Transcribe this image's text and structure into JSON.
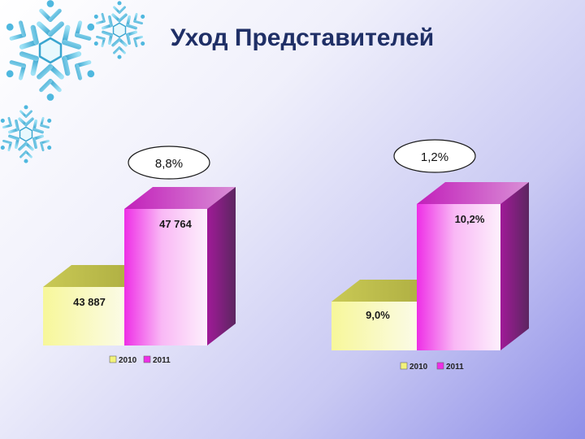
{
  "page": {
    "title": "Уход Представителей"
  },
  "colors": {
    "year_2010": "#f2f27a",
    "year_2011": "#ee2ee6",
    "snowflake": "#5bc4e6"
  },
  "chart_data": [
    {
      "type": "bar",
      "style": "3d",
      "categories": [
        "2010",
        "2011"
      ],
      "values": [
        43887,
        47764
      ],
      "data_labels": [
        "43 887",
        "47 764"
      ],
      "change_label": "8,8%",
      "legend": [
        "2010",
        "2011"
      ],
      "legend_position": "bottom",
      "grid": false
    },
    {
      "type": "bar",
      "style": "3d",
      "categories": [
        "2010",
        "2011"
      ],
      "values": [
        9.0,
        10.2
      ],
      "data_labels": [
        "9,0%",
        "10,2%"
      ],
      "change_label": "1,2%",
      "legend": [
        "2010",
        "2011"
      ],
      "legend_position": "bottom",
      "grid": false
    }
  ]
}
